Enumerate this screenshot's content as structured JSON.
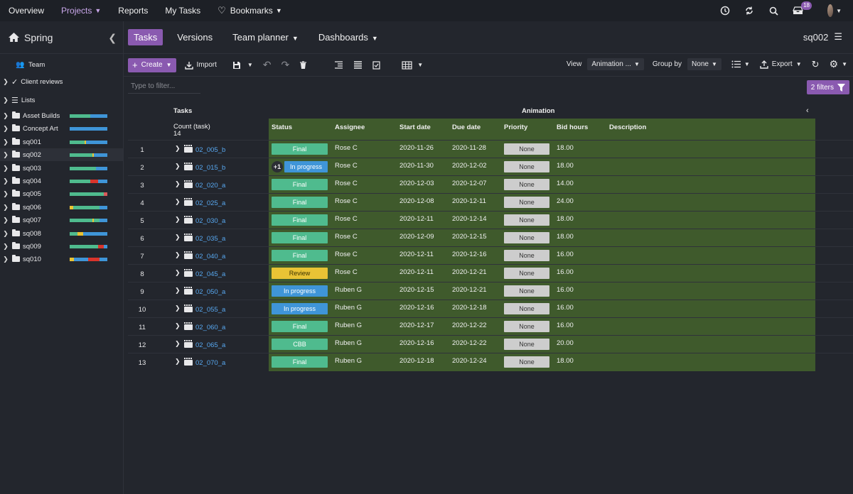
{
  "topbar": {
    "items": [
      {
        "label": "Overview"
      },
      {
        "label": "Projects"
      },
      {
        "label": "Reports"
      },
      {
        "label": "My Tasks"
      },
      {
        "label": "Bookmarks"
      }
    ],
    "notifications_count": "18"
  },
  "sidebar": {
    "project_name": "Spring",
    "items": [
      {
        "label": "Team"
      },
      {
        "label": "Client reviews"
      },
      {
        "label": "Lists"
      },
      {
        "label": "Asset Builds"
      },
      {
        "label": "Concept Art"
      },
      {
        "label": "sq001"
      },
      {
        "label": "sq002"
      },
      {
        "label": "sq003"
      },
      {
        "label": "sq004"
      },
      {
        "label": "sq005"
      },
      {
        "label": "sq006"
      },
      {
        "label": "sq007"
      },
      {
        "label": "sq008"
      },
      {
        "label": "sq009"
      },
      {
        "label": "sq010"
      }
    ]
  },
  "subnav": {
    "tabs": [
      {
        "label": "Tasks"
      },
      {
        "label": "Versions"
      },
      {
        "label": "Team planner"
      },
      {
        "label": "Dashboards"
      }
    ],
    "context": "sq002"
  },
  "toolbar": {
    "create_label": "Create",
    "import_label": "Import",
    "view_label": "View",
    "view_value": "Animation ...",
    "groupby_label": "Group by",
    "groupby_value": "None",
    "export_label": "Export"
  },
  "filter": {
    "placeholder": "Type to filter...",
    "filters_label": "2 filters"
  },
  "grid": {
    "tasks_header": "Tasks",
    "group_header": "Animation",
    "count_label": "Count (task)",
    "count_value": "14",
    "columns": {
      "status": "Status",
      "assignee": "Assignee",
      "start": "Start date",
      "due": "Due date",
      "priority": "Priority",
      "bid": "Bid hours",
      "description": "Description"
    },
    "rows": [
      {
        "num": "1",
        "name": "02_005_b",
        "status": "Final",
        "status_color": "#4fbb8e",
        "assignee": "Rose C",
        "start": "2020-11-26",
        "due": "2020-11-28",
        "priority": "None",
        "bid": "18.00"
      },
      {
        "num": "2",
        "name": "02_015_b",
        "status": "In progress",
        "status_color": "#3f95d8",
        "extra": "+1",
        "assignee": "Rose C",
        "start": "2020-11-30",
        "due": "2020-12-02",
        "priority": "None",
        "bid": "18.00"
      },
      {
        "num": "3",
        "name": "02_020_a",
        "status": "Final",
        "status_color": "#4fbb8e",
        "assignee": "Rose C",
        "start": "2020-12-03",
        "due": "2020-12-07",
        "priority": "None",
        "bid": "14.00"
      },
      {
        "num": "4",
        "name": "02_025_a",
        "status": "Final",
        "status_color": "#4fbb8e",
        "assignee": "Rose C",
        "start": "2020-12-08",
        "due": "2020-12-11",
        "priority": "None",
        "bid": "24.00"
      },
      {
        "num": "5",
        "name": "02_030_a",
        "status": "Final",
        "status_color": "#4fbb8e",
        "assignee": "Rose C",
        "start": "2020-12-11",
        "due": "2020-12-14",
        "priority": "None",
        "bid": "18.00"
      },
      {
        "num": "6",
        "name": "02_035_a",
        "status": "Final",
        "status_color": "#4fbb8e",
        "assignee": "Rose C",
        "start": "2020-12-09",
        "due": "2020-12-15",
        "priority": "None",
        "bid": "18.00"
      },
      {
        "num": "7",
        "name": "02_040_a",
        "status": "Final",
        "status_color": "#4fbb8e",
        "assignee": "Rose C",
        "start": "2020-12-11",
        "due": "2020-12-16",
        "priority": "None",
        "bid": "16.00"
      },
      {
        "num": "8",
        "name": "02_045_a",
        "status": "Review",
        "status_color": "#e9c335",
        "assignee": "Rose C",
        "start": "2020-12-11",
        "due": "2020-12-21",
        "priority": "None",
        "bid": "16.00"
      },
      {
        "num": "9",
        "name": "02_050_a",
        "status": "In progress",
        "status_color": "#3f95d8",
        "assignee": "Ruben G",
        "start": "2020-12-15",
        "due": "2020-12-21",
        "priority": "None",
        "bid": "16.00"
      },
      {
        "num": "10",
        "name": "02_055_a",
        "status": "In progress",
        "status_color": "#3f95d8",
        "assignee": "Ruben G",
        "start": "2020-12-16",
        "due": "2020-12-18",
        "priority": "None",
        "bid": "16.00"
      },
      {
        "num": "11",
        "name": "02_060_a",
        "status": "Final",
        "status_color": "#4fbb8e",
        "assignee": "Ruben G",
        "start": "2020-12-17",
        "due": "2020-12-22",
        "priority": "None",
        "bid": "16.00"
      },
      {
        "num": "12",
        "name": "02_065_a",
        "status": "CBB",
        "status_color": "#4fbb8e",
        "assignee": "Ruben G",
        "start": "2020-12-16",
        "due": "2020-12-22",
        "priority": "None",
        "bid": "20.00"
      },
      {
        "num": "13",
        "name": "02_070_a",
        "status": "Final",
        "status_color": "#4fbb8e",
        "assignee": "Ruben G",
        "start": "2020-12-18",
        "due": "2020-12-24",
        "priority": "None",
        "bid": "18.00"
      }
    ]
  }
}
